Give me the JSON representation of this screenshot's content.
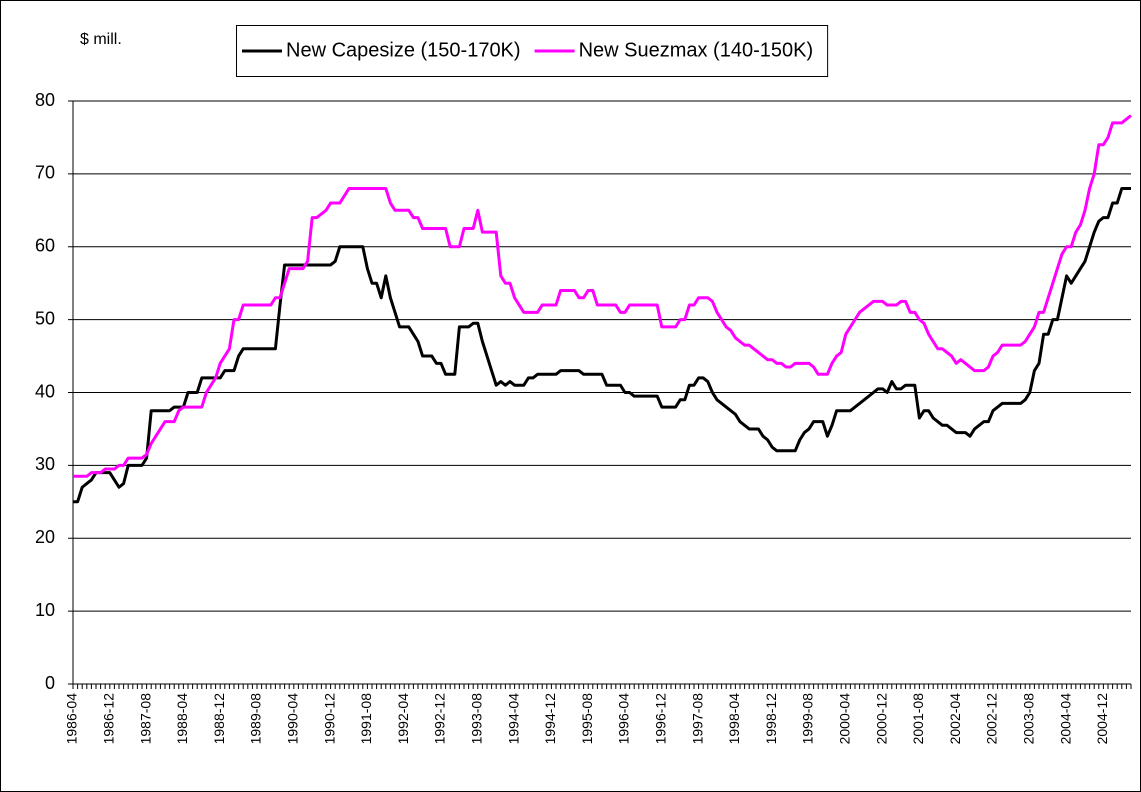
{
  "chart_data": {
    "type": "line",
    "ylabel": "$ mill.",
    "ylim": [
      0,
      80
    ],
    "yticks": [
      0,
      10,
      20,
      30,
      40,
      50,
      60,
      70,
      80
    ],
    "grid": true,
    "legend": "top",
    "categories": [
      "1986-04",
      null,
      null,
      null,
      null,
      null,
      null,
      null,
      "1986-12",
      null,
      null,
      null,
      null,
      null,
      null,
      null,
      "1987-08",
      null,
      null,
      null,
      null,
      null,
      null,
      null,
      "1988-04",
      null,
      null,
      null,
      null,
      null,
      null,
      null,
      "1988-12",
      null,
      null,
      null,
      null,
      null,
      null,
      null,
      "1989-08",
      null,
      null,
      null,
      null,
      null,
      null,
      null,
      "1990-04",
      null,
      null,
      null,
      null,
      null,
      null,
      null,
      "1990-12",
      null,
      null,
      null,
      null,
      null,
      null,
      null,
      "1991-08",
      null,
      null,
      null,
      null,
      null,
      null,
      null,
      "1992-04",
      null,
      null,
      null,
      null,
      null,
      null,
      null,
      "1992-12",
      null,
      null,
      null,
      null,
      null,
      null,
      null,
      "1993-08",
      null,
      null,
      null,
      null,
      null,
      null,
      null,
      "1994-04",
      null,
      null,
      null,
      null,
      null,
      null,
      null,
      "1994-12",
      null,
      null,
      null,
      null,
      null,
      null,
      null,
      "1995-08",
      null,
      null,
      null,
      null,
      null,
      null,
      null,
      "1996-04",
      null,
      null,
      null,
      null,
      null,
      null,
      null,
      "1996-12",
      null,
      null,
      null,
      null,
      null,
      null,
      null,
      "1997-08",
      null,
      null,
      null,
      null,
      null,
      null,
      null,
      "1998-04",
      null,
      null,
      null,
      null,
      null,
      null,
      null,
      "1998-12",
      null,
      null,
      null,
      null,
      null,
      null,
      null,
      "1999-08",
      null,
      null,
      null,
      null,
      null,
      null,
      null,
      "2000-04",
      null,
      null,
      null,
      null,
      null,
      null,
      null,
      "2000-12",
      null,
      null,
      null,
      null,
      null,
      null,
      null,
      "2001-08",
      null,
      null,
      null,
      null,
      null,
      null,
      null,
      "2002-04",
      null,
      null,
      null,
      null,
      null,
      null,
      null,
      "2002-12",
      null,
      null,
      null,
      null,
      null,
      null,
      null,
      "2003-08",
      null,
      null,
      null,
      null,
      null,
      null,
      null,
      "2004-04",
      null,
      null,
      null,
      null,
      null,
      null,
      null,
      "2004-12",
      null,
      null,
      null,
      null,
      null,
      null
    ],
    "series": [
      {
        "name": "New Capesize (150-170K)",
        "color": "#000000",
        "values": [
          25,
          25,
          27,
          27.5,
          28,
          29,
          29,
          29,
          29,
          28,
          27,
          27.5,
          30,
          30,
          30,
          30,
          31,
          37.5,
          37.5,
          37.5,
          37.5,
          37.5,
          38,
          38,
          38,
          40,
          40,
          40,
          42,
          42,
          42,
          42,
          42,
          43,
          43,
          43,
          45,
          46,
          46,
          46,
          46,
          46,
          46,
          46,
          46,
          52,
          57.5,
          57.5,
          57.5,
          57.5,
          57.5,
          57.5,
          57.5,
          57.5,
          57.5,
          57.5,
          57.5,
          58,
          60,
          60,
          60,
          60,
          60,
          60,
          57,
          55,
          55,
          53,
          56,
          53,
          51,
          49,
          49,
          49,
          48,
          47,
          45,
          45,
          45,
          44,
          44,
          42.5,
          42.5,
          42.5,
          49,
          49,
          49,
          49.5,
          49.5,
          47,
          45,
          43,
          41,
          41.5,
          41,
          41.5,
          41,
          41,
          41,
          42,
          42,
          42.5,
          42.5,
          42.5,
          42.5,
          42.5,
          43,
          43,
          43,
          43,
          43,
          42.5,
          42.5,
          42.5,
          42.5,
          42.5,
          41,
          41,
          41,
          41,
          40,
          40,
          39.5,
          39.5,
          39.5,
          39.5,
          39.5,
          39.5,
          38,
          38,
          38,
          38,
          39,
          39,
          41,
          41,
          42,
          42,
          41.5,
          40,
          39,
          38.5,
          38,
          37.5,
          37,
          36,
          35.5,
          35,
          35,
          35,
          34,
          33.5,
          32.5,
          32,
          32,
          32,
          32,
          32,
          33.5,
          34.5,
          35,
          36,
          36,
          36,
          34,
          35.5,
          37.5,
          37.5,
          37.5,
          37.5,
          38,
          38.5,
          39,
          39.5,
          40,
          40.5,
          40.5,
          40,
          41.5,
          40.5,
          40.5,
          41,
          41,
          41,
          36.5,
          37.5,
          37.5,
          36.5,
          36,
          35.5,
          35.5,
          35,
          34.5,
          34.5,
          34.5,
          34,
          35,
          35.5,
          36,
          36,
          37.5,
          38,
          38.5,
          38.5,
          38.5,
          38.5,
          38.5,
          39,
          40,
          43,
          44,
          48,
          48,
          50,
          50,
          53,
          56,
          55,
          56,
          57,
          58,
          60,
          62,
          63.5,
          64,
          64,
          66,
          66,
          68,
          68,
          68
        ]
      },
      {
        "name": "New Suezmax (140-150K)",
        "color": "#ff00ff",
        "values": [
          28.5,
          28.5,
          28.5,
          28.5,
          29,
          29,
          29,
          29.5,
          29.5,
          29.5,
          30,
          30,
          31,
          31,
          31,
          31,
          31.5,
          33,
          34,
          35,
          36,
          36,
          36,
          37.5,
          38,
          38,
          38,
          38,
          38,
          40,
          41,
          42,
          44,
          45,
          46,
          50,
          50,
          52,
          52,
          52,
          52,
          52,
          52,
          52,
          53,
          53,
          55,
          57,
          57,
          57,
          57,
          58,
          64,
          64,
          64.5,
          65,
          66,
          66,
          66,
          67,
          68,
          68,
          68,
          68,
          68,
          68,
          68,
          68,
          68,
          66,
          65,
          65,
          65,
          65,
          64,
          64,
          62.5,
          62.5,
          62.5,
          62.5,
          62.5,
          62.5,
          60,
          60,
          60,
          62.5,
          62.5,
          62.5,
          65,
          62,
          62,
          62,
          62,
          56,
          55,
          55,
          53,
          52,
          51,
          51,
          51,
          51,
          52,
          52,
          52,
          52,
          54,
          54,
          54,
          54,
          53,
          53,
          54,
          54,
          52,
          52,
          52,
          52,
          52,
          51,
          51,
          52,
          52,
          52,
          52,
          52,
          52,
          52,
          49,
          49,
          49,
          49,
          50,
          50,
          52,
          52,
          53,
          53,
          53,
          52.5,
          51,
          50,
          49,
          48.5,
          47.5,
          47,
          46.5,
          46.5,
          46,
          45.5,
          45,
          44.5,
          44.5,
          44,
          44,
          43.5,
          43.5,
          44,
          44,
          44,
          44,
          43.5,
          42.5,
          42.5,
          42.5,
          44,
          45,
          45.5,
          48,
          49,
          50,
          51,
          51.5,
          52,
          52.5,
          52.5,
          52.5,
          52,
          52,
          52,
          52.5,
          52.5,
          51,
          51,
          50,
          49.5,
          48,
          47,
          46,
          46,
          45.5,
          45,
          44,
          44.5,
          44,
          43.5,
          43,
          43,
          43,
          43.5,
          45,
          45.5,
          46.5,
          46.5,
          46.5,
          46.5,
          46.5,
          47,
          48,
          49,
          51,
          51,
          53,
          55,
          57,
          59,
          60,
          60,
          62,
          63,
          65,
          68,
          70,
          74,
          74,
          75,
          77,
          77,
          77,
          77.5,
          78
        ]
      }
    ]
  }
}
